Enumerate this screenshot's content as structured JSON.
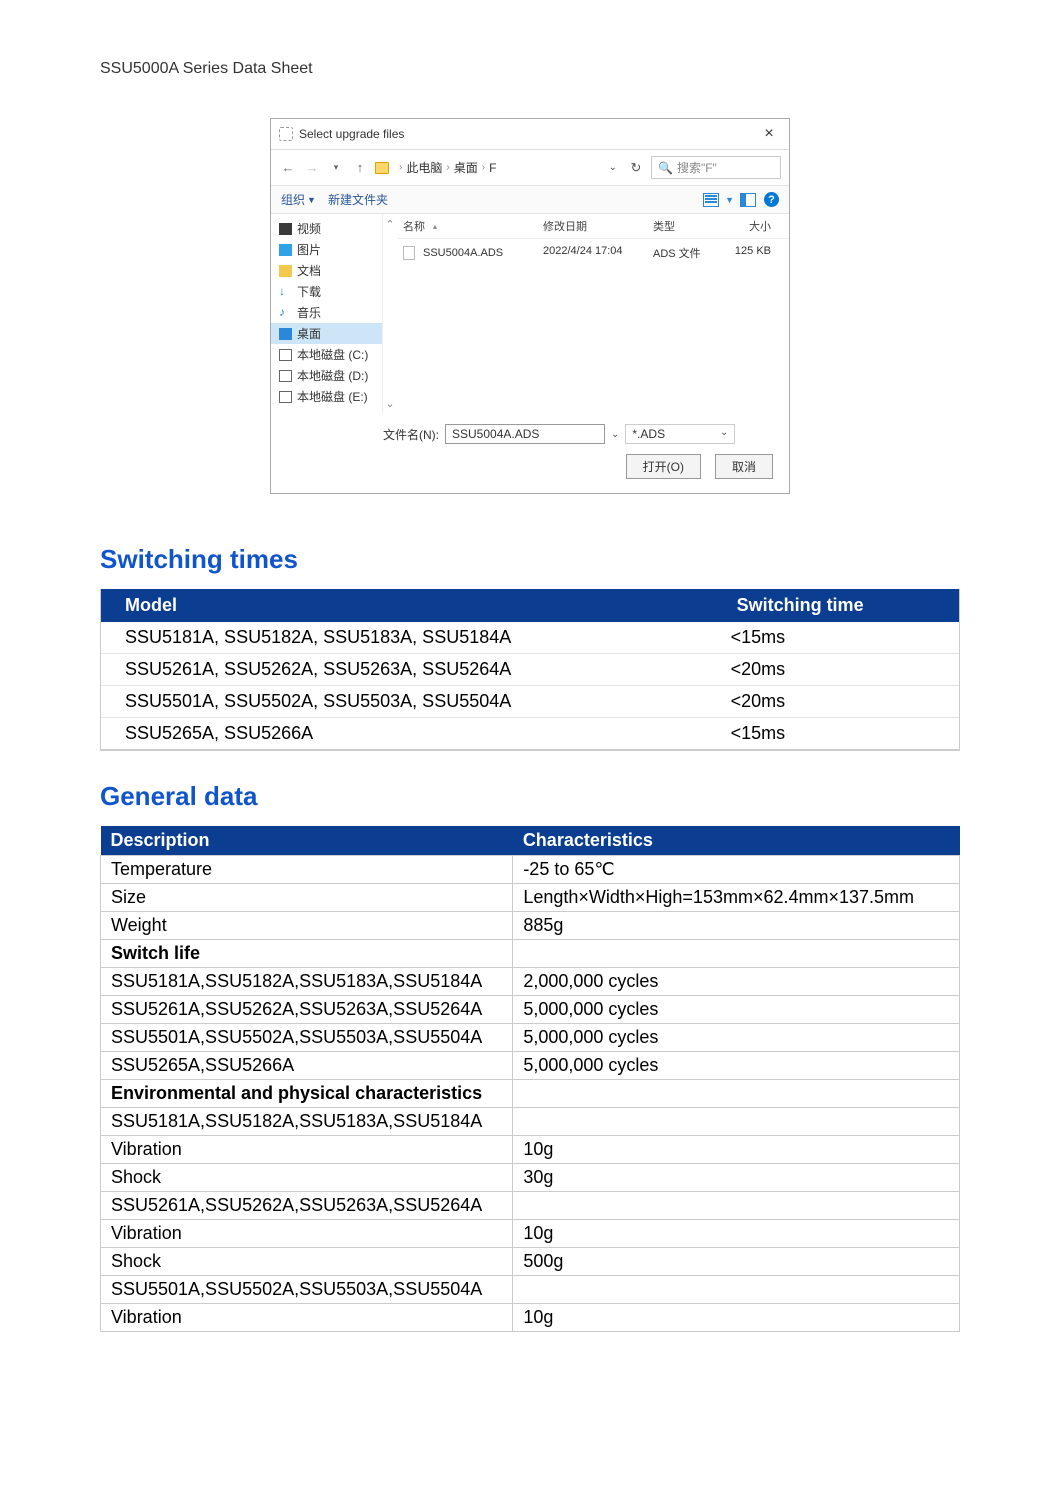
{
  "doc": {
    "title": "SSU5000A Series Data Sheet"
  },
  "dialog": {
    "title": "Select upgrade files",
    "breadcrumbs": [
      "此电脑",
      "桌面",
      "F"
    ],
    "search_placeholder": "搜索\"F\"",
    "toolbar": {
      "organize": "组织",
      "new_folder": "新建文件夹"
    },
    "sidebar": {
      "items": [
        {
          "label": "视频"
        },
        {
          "label": "图片"
        },
        {
          "label": "文档"
        },
        {
          "label": "下载"
        },
        {
          "label": "音乐"
        },
        {
          "label": "桌面",
          "selected": true
        },
        {
          "label": "本地磁盘 (C:)"
        },
        {
          "label": "本地磁盘 (D:)"
        },
        {
          "label": "本地磁盘 (E:)"
        }
      ]
    },
    "columns": {
      "name": "名称",
      "date": "修改日期",
      "type": "类型",
      "size": "大小"
    },
    "files": [
      {
        "name": "SSU5004A.ADS",
        "date": "2022/4/24 17:04",
        "type": "ADS 文件",
        "size": "125 KB"
      }
    ],
    "filename_label": "文件名(N):",
    "filename_value": "SSU5004A.ADS",
    "filter": "*.ADS",
    "open_btn": "打开(O)",
    "cancel_btn": "取消"
  },
  "switching": {
    "heading": "Switching times",
    "columns": [
      "Model",
      "Switching time"
    ],
    "rows": [
      [
        "SSU5181A, SSU5182A, SSU5183A, SSU5184A",
        "<15ms"
      ],
      [
        "SSU5261A, SSU5262A, SSU5263A, SSU5264A",
        "<20ms"
      ],
      [
        "SSU5501A, SSU5502A, SSU5503A, SSU5504A",
        "<20ms"
      ],
      [
        "SSU5265A, SSU5266A",
        "<15ms"
      ]
    ]
  },
  "general": {
    "heading": "General data",
    "columns": [
      "Description",
      "Characteristics"
    ],
    "rows": [
      {
        "c0": "Temperature",
        "c1": "-25 to 65℃"
      },
      {
        "c0": "Size",
        "c1": "Length×Width×High=153mm×62.4mm×137.5mm"
      },
      {
        "c0": "Weight",
        "c1": "885g"
      },
      {
        "c0": "Switch life",
        "c1": "",
        "bold": true
      },
      {
        "c0": "SSU5181A,SSU5182A,SSU5183A,SSU5184A",
        "c1": "2,000,000 cycles"
      },
      {
        "c0": "SSU5261A,SSU5262A,SSU5263A,SSU5264A",
        "c1": "5,000,000 cycles"
      },
      {
        "c0": "SSU5501A,SSU5502A,SSU5503A,SSU5504A",
        "c1": "5,000,000 cycles"
      },
      {
        "c0": "SSU5265A,SSU5266A",
        "c1": "5,000,000 cycles"
      },
      {
        "c0": "Environmental and physical characteristics",
        "c1": "",
        "bold": true
      },
      {
        "c0": "SSU5181A,SSU5182A,SSU5183A,SSU5184A",
        "c1": ""
      },
      {
        "c0": "Vibration",
        "c1": "10g"
      },
      {
        "c0": "Shock",
        "c1": "30g"
      },
      {
        "c0": "SSU5261A,SSU5262A,SSU5263A,SSU5264A",
        "c1": ""
      },
      {
        "c0": "Vibration",
        "c1": "10g"
      },
      {
        "c0": "Shock",
        "c1": "500g"
      },
      {
        "c0": "SSU5501A,SSU5502A,SSU5503A,SSU5504A",
        "c1": ""
      },
      {
        "c0": "Vibration",
        "c1": "10g"
      }
    ]
  },
  "colors": {
    "heading": "#1155cc",
    "table_header_bg": "#0b3d91",
    "table_header_fg": "#ffffff",
    "grid": "#cccccc"
  }
}
